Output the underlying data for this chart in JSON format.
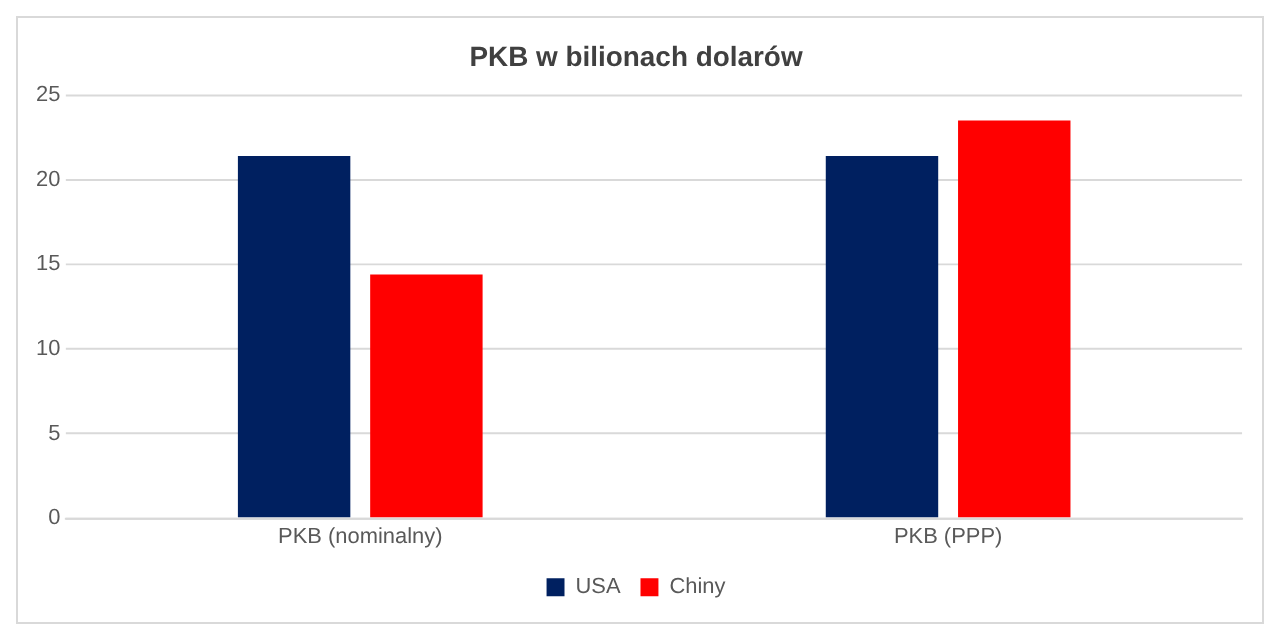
{
  "chart_data": {
    "type": "bar",
    "title": "PKB w bilionach dolarów",
    "categories": [
      "PKB (nominalny)",
      "PKB (PPP)"
    ],
    "series": [
      {
        "name": "USA",
        "color": "#002060",
        "values": [
          21.4,
          21.4
        ]
      },
      {
        "name": "Chiny",
        "color": "#ff0000",
        "values": [
          14.4,
          23.5
        ]
      }
    ],
    "ylim": [
      0,
      25
    ],
    "yticks": [
      0,
      5,
      10,
      15,
      20,
      25
    ],
    "grid": "y",
    "legend": "bottom"
  }
}
